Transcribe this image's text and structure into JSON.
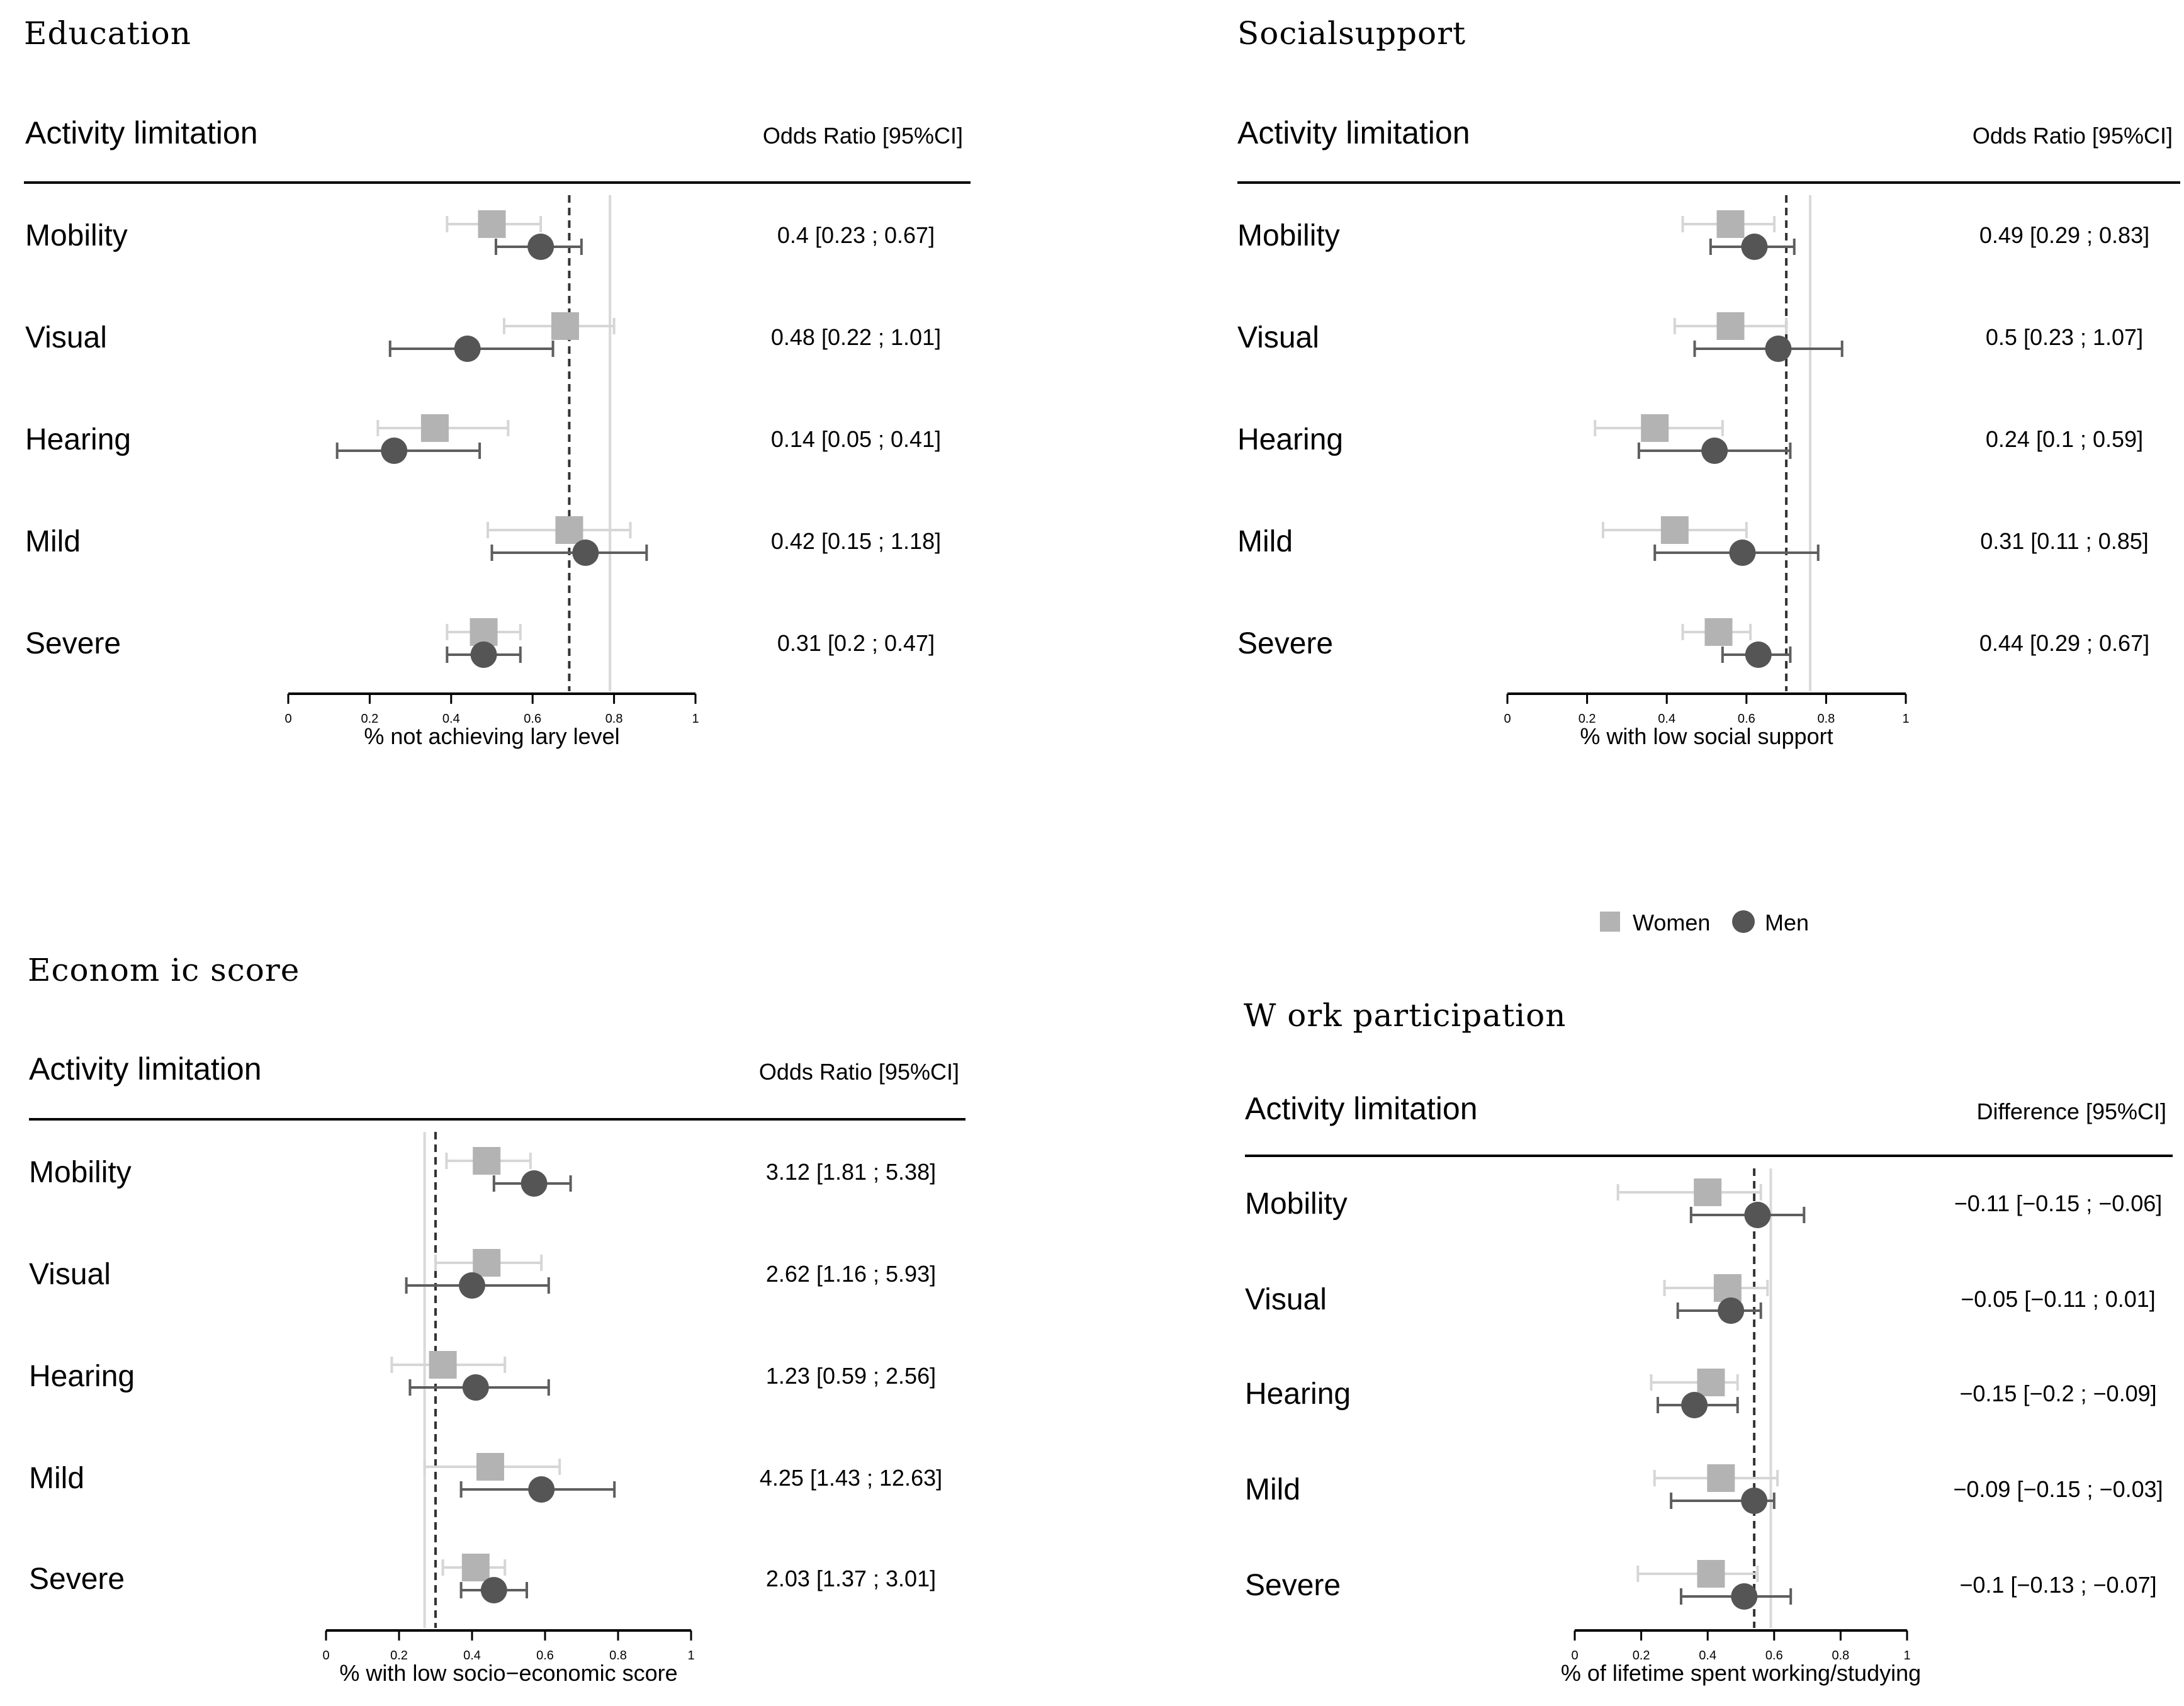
{
  "legend": {
    "women_label": "Women",
    "men_label": "Men"
  },
  "colors": {
    "women": "#b3b3b3",
    "men": "#555555",
    "women_ci": "#d6d6d6",
    "men_ci": "#5e5e5e",
    "overall_line": "#333333",
    "ref_line": "#d9d9d9"
  },
  "chart_data": [
    {
      "type": "forest",
      "title": "Education",
      "row_header": "Activity limitation",
      "stat_header": "Odds Ratio [95%CI]",
      "xlabel": "% not achieving lary level",
      "xlim": [
        0,
        1
      ],
      "xticks": [
        "0",
        "0.2",
        "0.4",
        "0.6",
        "0.8",
        "1"
      ],
      "overall_dashed": 0.69,
      "reference_solid": 0.79,
      "rows": [
        {
          "label": "Mobility",
          "stat": "0.4 [0.23 ; 0.67]",
          "women": [
            0.5,
            0.39,
            0.62
          ],
          "men": [
            0.62,
            0.51,
            0.72
          ]
        },
        {
          "label": "Visual",
          "stat": "0.48 [0.22 ; 1.01]",
          "women": [
            0.68,
            0.53,
            0.8
          ],
          "men": [
            0.44,
            0.25,
            0.65
          ]
        },
        {
          "label": "Hearing",
          "stat": "0.14 [0.05 ; 0.41]",
          "women": [
            0.36,
            0.22,
            0.54
          ],
          "men": [
            0.26,
            0.12,
            0.47
          ]
        },
        {
          "label": "Mild",
          "stat": "0.42 [0.15 ; 1.18]",
          "women": [
            0.69,
            0.49,
            0.84
          ],
          "men": [
            0.73,
            0.5,
            0.88
          ]
        },
        {
          "label": "Severe",
          "stat": "0.31 [0.2 ; 0.47]",
          "women": [
            0.48,
            0.39,
            0.57
          ],
          "men": [
            0.48,
            0.39,
            0.57
          ]
        }
      ]
    },
    {
      "type": "forest",
      "title": "Socialsupport",
      "row_header": "Activity limitation",
      "stat_header": "Odds Ratio [95%CI]",
      "xlabel": "% with low social support",
      "xlim": [
        0,
        1
      ],
      "xticks": [
        "0",
        "0.2",
        "0.4",
        "0.6",
        "0.8",
        "1"
      ],
      "overall_dashed": 0.7,
      "reference_solid": 0.76,
      "rows": [
        {
          "label": "Mobility",
          "stat": "0.49 [0.29 ; 0.83]",
          "women": [
            0.56,
            0.44,
            0.67
          ],
          "men": [
            0.62,
            0.51,
            0.72
          ]
        },
        {
          "label": "Visual",
          "stat": "0.5 [0.23 ; 1.07]",
          "women": [
            0.56,
            0.42,
            0.7
          ],
          "men": [
            0.68,
            0.47,
            0.84
          ]
        },
        {
          "label": "Hearing",
          "stat": "0.24 [0.1 ; 0.59]",
          "women": [
            0.37,
            0.22,
            0.54
          ],
          "men": [
            0.52,
            0.33,
            0.71
          ]
        },
        {
          "label": "Mild",
          "stat": "0.31 [0.11 ; 0.85]",
          "women": [
            0.42,
            0.24,
            0.6
          ],
          "men": [
            0.59,
            0.37,
            0.78
          ]
        },
        {
          "label": "Severe",
          "stat": "0.44 [0.29 ; 0.67]",
          "women": [
            0.53,
            0.44,
            0.61
          ],
          "men": [
            0.63,
            0.54,
            0.71
          ]
        }
      ]
    },
    {
      "type": "forest",
      "title": "Econom ic score",
      "row_header": "Activity limitation",
      "stat_header": "Odds Ratio [95%CI]",
      "xlabel": "% with low socio−economic score",
      "xlim": [
        0,
        1
      ],
      "xticks": [
        "0",
        "0.2",
        "0.4",
        "0.6",
        "0.8",
        "1"
      ],
      "overall_dashed": 0.3,
      "reference_solid": 0.27,
      "rows": [
        {
          "label": "Mobility",
          "stat": "3.12 [1.81 ; 5.38]",
          "women": [
            0.44,
            0.33,
            0.56
          ],
          "men": [
            0.57,
            0.46,
            0.67
          ]
        },
        {
          "label": "Visual",
          "stat": "2.62 [1.16 ; 5.93]",
          "women": [
            0.44,
            0.3,
            0.59
          ],
          "men": [
            0.4,
            0.22,
            0.61
          ]
        },
        {
          "label": "Hearing",
          "stat": "1.23 [0.59 ; 2.56]",
          "women": [
            0.32,
            0.18,
            0.49
          ],
          "men": [
            0.41,
            0.23,
            0.61
          ]
        },
        {
          "label": "Mild",
          "stat": "4.25 [1.43 ; 12.63]",
          "women": [
            0.45,
            0.27,
            0.64
          ],
          "men": [
            0.59,
            0.37,
            0.79
          ]
        },
        {
          "label": "Severe",
          "stat": "2.03 [1.37 ; 3.01]",
          "women": [
            0.41,
            0.32,
            0.49
          ],
          "men": [
            0.46,
            0.37,
            0.55
          ]
        }
      ]
    },
    {
      "type": "forest",
      "title": "W ork participation",
      "row_header": "Activity limitation",
      "stat_header": "Difference [95%CI]",
      "xlabel": "% of lifetime spent working/studying",
      "xlim": [
        0,
        1
      ],
      "xticks": [
        "0",
        "0.2",
        "0.4",
        "0.6",
        "0.8",
        "1"
      ],
      "overall_dashed": 0.54,
      "reference_solid": 0.59,
      "rows": [
        {
          "label": "Mobility",
          "stat": "−0.11 [−0.15 ; −0.06]",
          "women": [
            0.4,
            0.13,
            0.56
          ],
          "men": [
            0.55,
            0.35,
            0.69
          ]
        },
        {
          "label": "Visual",
          "stat": "−0.05 [−0.11 ; 0.01]",
          "women": [
            0.46,
            0.27,
            0.58
          ],
          "men": [
            0.47,
            0.31,
            0.56
          ]
        },
        {
          "label": "Hearing",
          "stat": "−0.15 [−0.2 ; −0.09]",
          "women": [
            0.41,
            0.23,
            0.49
          ],
          "men": [
            0.36,
            0.25,
            0.49
          ]
        },
        {
          "label": "Mild",
          "stat": "−0.09 [−0.15 ; −0.03]",
          "women": [
            0.44,
            0.24,
            0.61
          ],
          "men": [
            0.54,
            0.29,
            0.6
          ]
        },
        {
          "label": "Severe",
          "stat": "−0.1 [−0.13 ; −0.07]",
          "women": [
            0.41,
            0.19,
            0.55
          ],
          "men": [
            0.51,
            0.32,
            0.65
          ]
        }
      ]
    }
  ]
}
